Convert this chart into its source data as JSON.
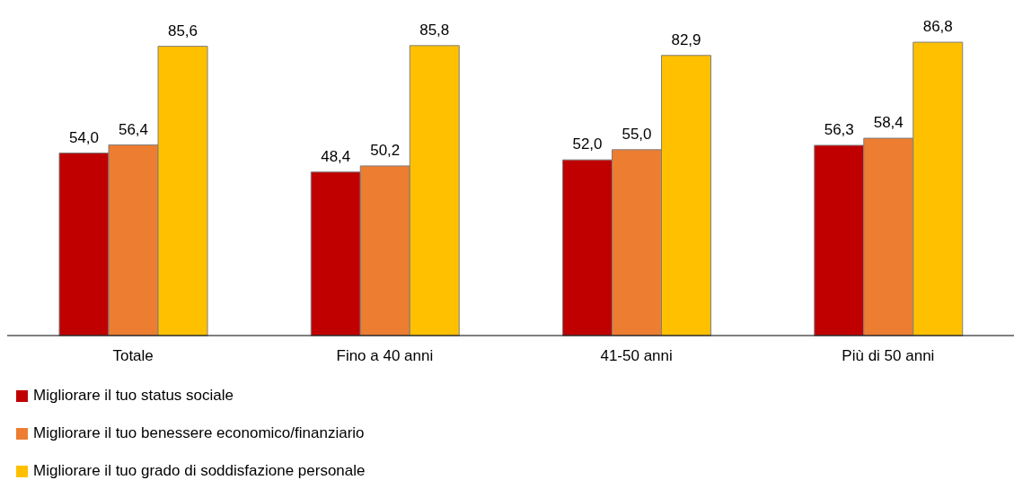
{
  "chart_data": {
    "type": "bar",
    "categories": [
      "Totale",
      "Fino a 40 anni",
      "41-50 anni",
      "Più di 50 anni"
    ],
    "series": [
      {
        "name": "Migliorare il tuo status sociale",
        "color": "#c00000",
        "values": [
          54.0,
          48.4,
          52.0,
          56.3
        ],
        "value_labels": [
          "54,0",
          "48,4",
          "52,0",
          "56,3"
        ]
      },
      {
        "name": "Migliorare il tuo benessere economico/finanziario",
        "color": "#ed7d31",
        "values": [
          56.4,
          50.2,
          55.0,
          58.4
        ],
        "value_labels": [
          "56,4",
          "50,2",
          "55,0",
          "58,4"
        ]
      },
      {
        "name": "Migliorare il tuo grado di soddisfazione personale",
        "color": "#ffc000",
        "values": [
          85.6,
          85.8,
          82.9,
          86.8
        ],
        "value_labels": [
          "85,6",
          "85,8",
          "82,9",
          "86,8"
        ]
      }
    ],
    "tick_labels": "x",
    "legend": "bottom left"
  }
}
